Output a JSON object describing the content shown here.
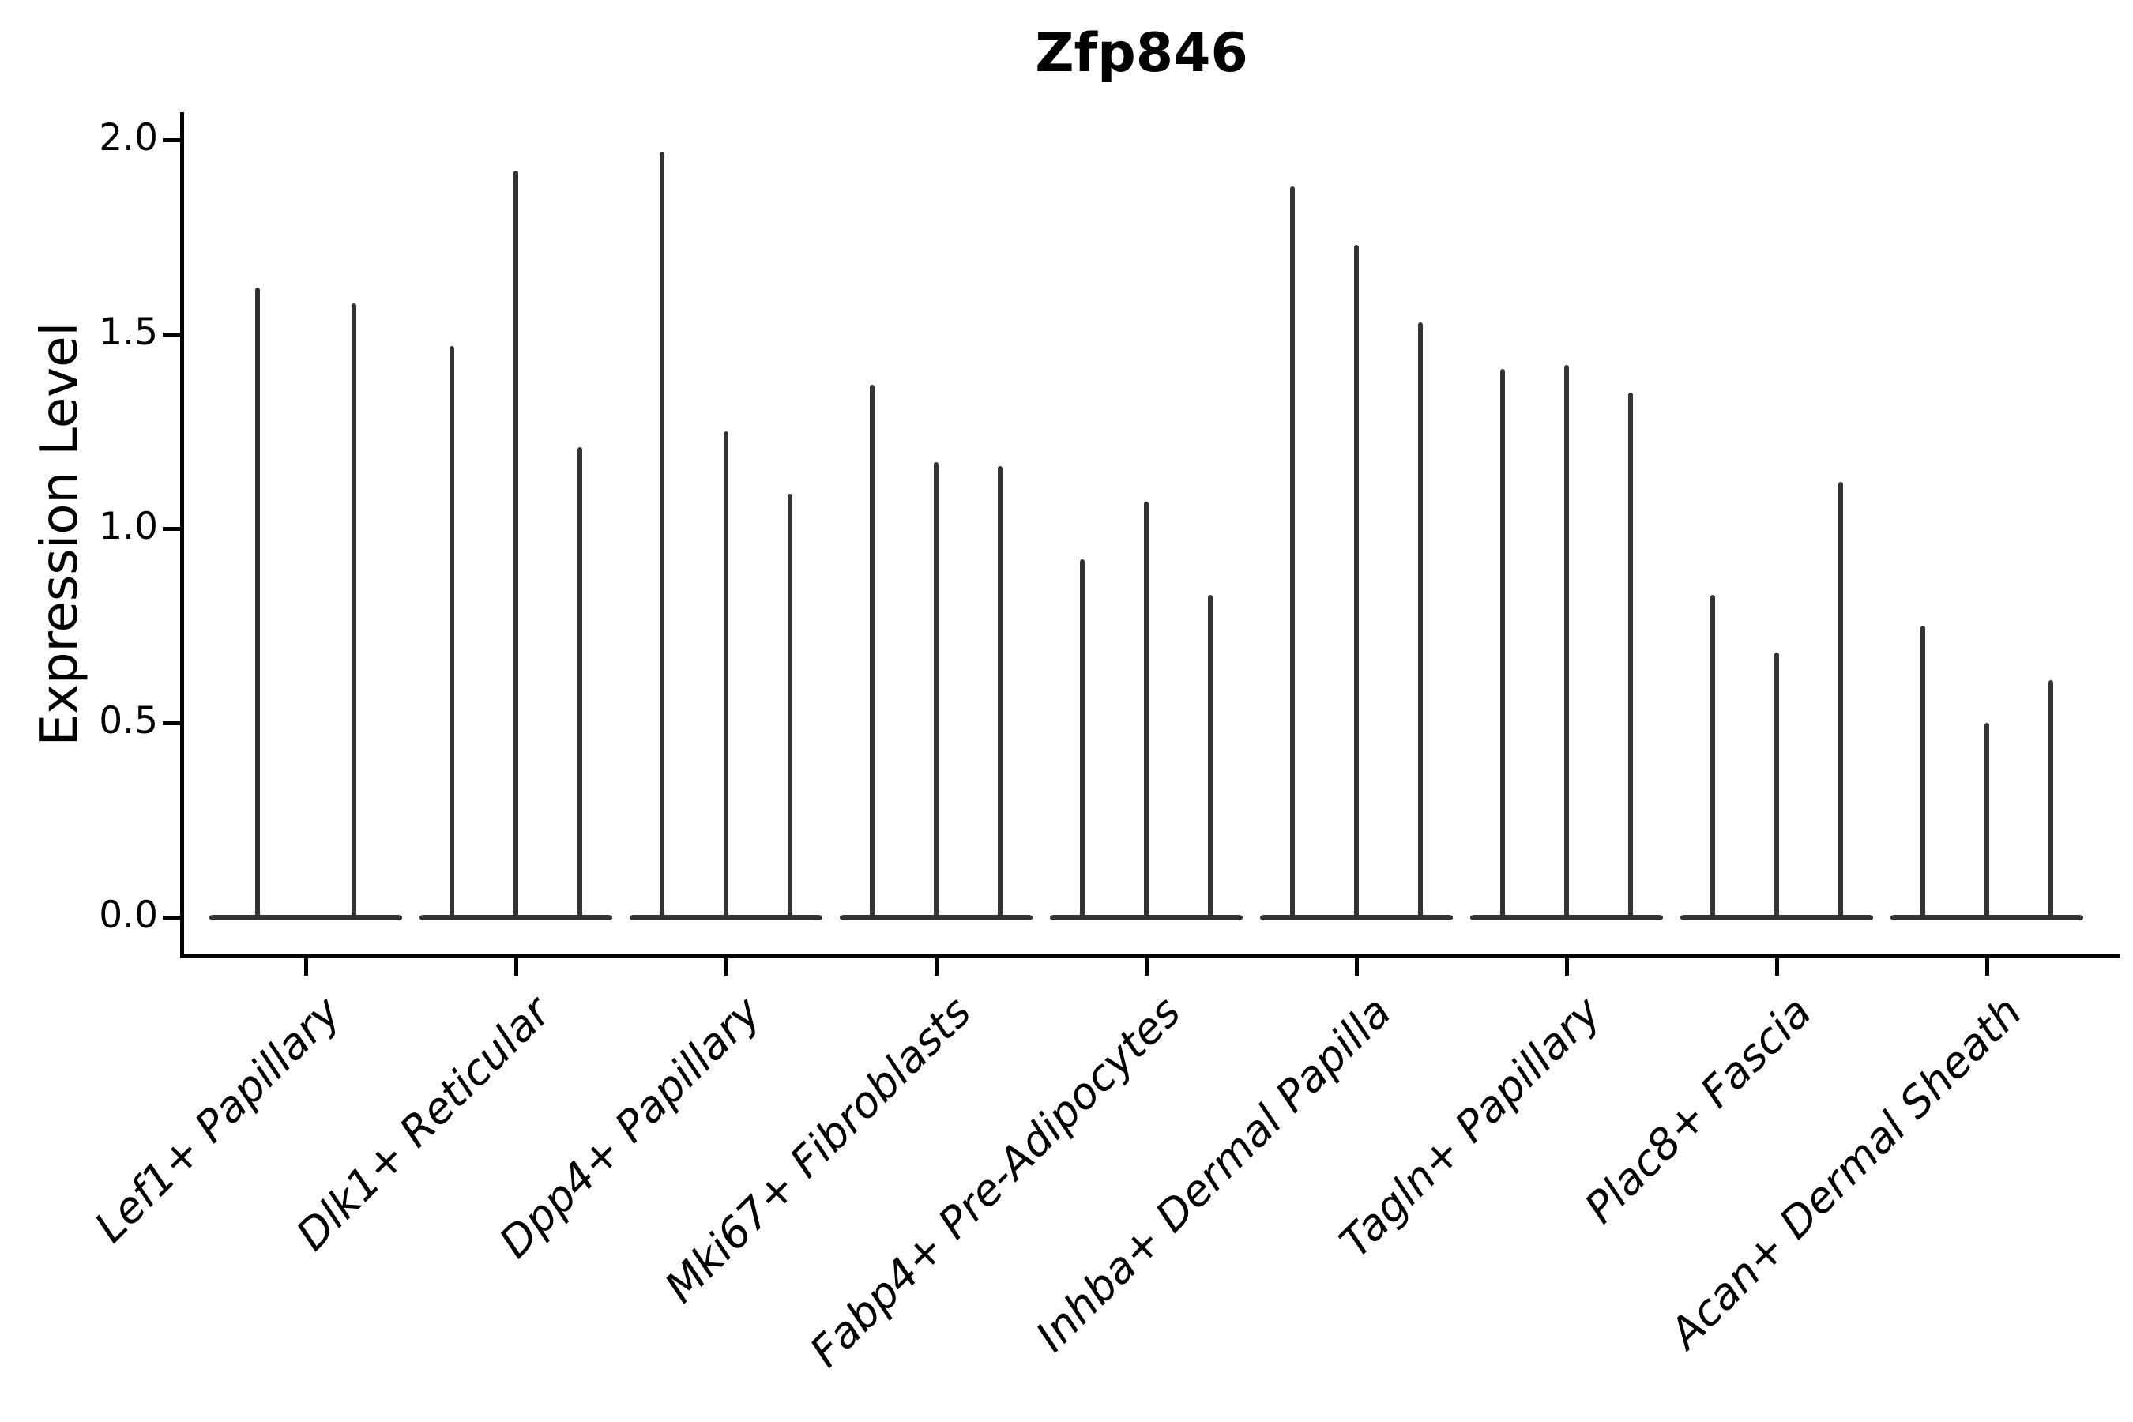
{
  "figure": {
    "title": "Zfp846",
    "y_axis_label": "Expression Level"
  },
  "chart_data": {
    "type": "violin",
    "title": "Zfp846",
    "xlabel": "",
    "ylabel": "Expression Level",
    "ylim": [
      -0.1,
      2.06
    ],
    "grid": false,
    "legend": "none",
    "style": "needle-thin violins with flat max-width body at 0; only left and bottom spines",
    "yticks": [
      {
        "value": 0.0,
        "label": "0.0"
      },
      {
        "value": 0.5,
        "label": "0.5"
      },
      {
        "value": 1.0,
        "label": "1.0"
      },
      {
        "value": 1.5,
        "label": "1.5"
      },
      {
        "value": 2.0,
        "label": "2.0"
      }
    ],
    "categories": [
      "Lef1+ Papillary",
      "Dlk1+ Reticular",
      "Dpp4+ Papillary",
      "Mki67+ Fibroblasts",
      "Fabp4+ Pre-Adipocytes",
      "Inhba+ Dermal Papilla",
      "Tagln+ Papillary",
      "Plac8+ Fascia",
      "Acan+ Dermal Sheath"
    ],
    "groups": [
      {
        "category": "Lef1+ Papillary",
        "violin_max_values": [
          1.62,
          1.58
        ]
      },
      {
        "category": "Dlk1+ Reticular",
        "violin_max_values": [
          1.47,
          1.92,
          1.21
        ]
      },
      {
        "category": "Dpp4+ Papillary",
        "violin_max_values": [
          1.97,
          1.25,
          1.09
        ]
      },
      {
        "category": "Mki67+ Fibroblasts",
        "violin_max_values": [
          1.37,
          1.17,
          1.16
        ]
      },
      {
        "category": "Fabp4+ Pre-Adipocytes",
        "violin_max_values": [
          0.92,
          1.07,
          0.83
        ]
      },
      {
        "category": "Inhba+ Dermal Papilla",
        "violin_max_values": [
          1.88,
          1.73,
          1.53
        ]
      },
      {
        "category": "Tagln+ Papillary",
        "violin_max_values": [
          1.41,
          1.42,
          1.35
        ]
      },
      {
        "category": "Plac8+ Fascia",
        "violin_max_values": [
          0.83,
          0.68,
          1.12
        ]
      },
      {
        "category": "Acan+ Dermal Sheath",
        "violin_max_values": [
          0.75,
          0.5,
          0.61
        ]
      }
    ],
    "colors": {
      "violin": "#333333",
      "axis": "#000000",
      "text": "#000000",
      "background": "#ffffff"
    }
  }
}
